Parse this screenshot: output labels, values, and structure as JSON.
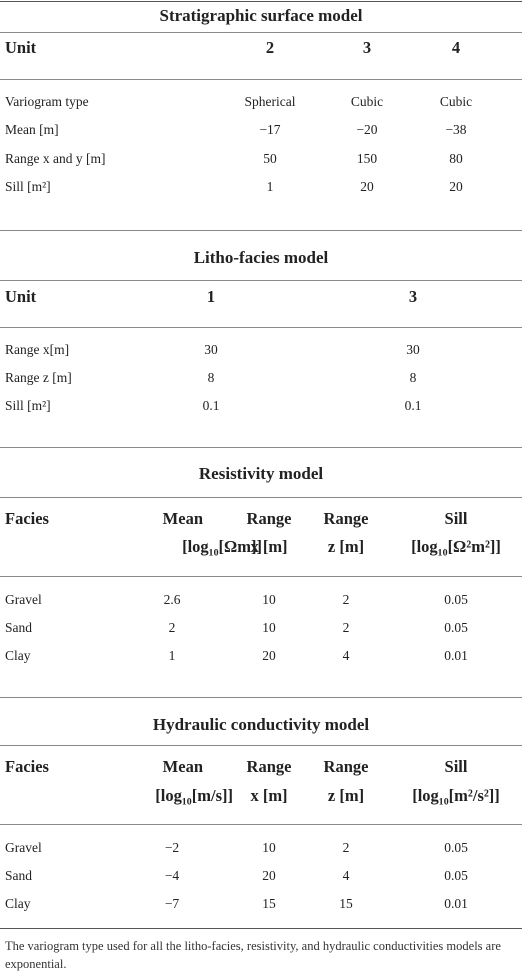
{
  "stratigraphic": {
    "title": "Stratigraphic surface model",
    "header": [
      "Unit",
      "2",
      "3",
      "4"
    ],
    "rows": [
      [
        "Variogram type",
        "Spherical",
        "Cubic",
        "Cubic"
      ],
      [
        "Mean [m]",
        "−17",
        "−20",
        "−38"
      ],
      [
        "Range x and y [m]",
        "50",
        "150",
        "80"
      ],
      [
        "Sill [m²]",
        "1",
        "20",
        "20"
      ]
    ]
  },
  "litho": {
    "title": "Litho-facies model",
    "header": [
      "Unit",
      "1",
      "3"
    ],
    "rows": [
      [
        "Range x[m]",
        "30",
        "30"
      ],
      [
        "Range z [m]",
        "8",
        "8"
      ],
      [
        "Sill [m²]",
        "0.1",
        "0.1"
      ]
    ]
  },
  "resistivity": {
    "title": "Resistivity model",
    "header": {
      "facies": "Facies",
      "mean_top": "Mean",
      "mean_bottom": "[log₁₀[Ωm]]",
      "rangex_top": "Range",
      "rangex_bottom": "x [m]",
      "rangez_top": "Range",
      "rangez_bottom": "z [m]",
      "sill_top": "Sill",
      "sill_bottom": "[log₁₀[Ω²m²]]"
    },
    "rows": [
      [
        "Gravel",
        "2.6",
        "10",
        "2",
        "0.05"
      ],
      [
        "Sand",
        "2",
        "10",
        "2",
        "0.05"
      ],
      [
        "Clay",
        "1",
        "20",
        "4",
        "0.01"
      ]
    ]
  },
  "hydraulic": {
    "title": "Hydraulic conductivity model",
    "header": {
      "facies": "Facies",
      "mean_top": "Mean",
      "mean_bottom": "[log₁₀[m/s]]",
      "rangex_top": "Range",
      "rangex_bottom": "x [m]",
      "rangez_top": "Range",
      "rangez_bottom": "z [m]",
      "sill_top": "Sill",
      "sill_bottom": "[log₁₀[m²/s²]]"
    },
    "rows": [
      [
        "Gravel",
        "−2",
        "10",
        "2",
        "0.05"
      ],
      [
        "Sand",
        "−4",
        "20",
        "4",
        "0.05"
      ],
      [
        "Clay",
        "−7",
        "15",
        "15",
        "0.01"
      ]
    ]
  },
  "footnote": "The variogram type used for all the litho-facies, resistivity, and hydraulic conductivities models are exponential."
}
